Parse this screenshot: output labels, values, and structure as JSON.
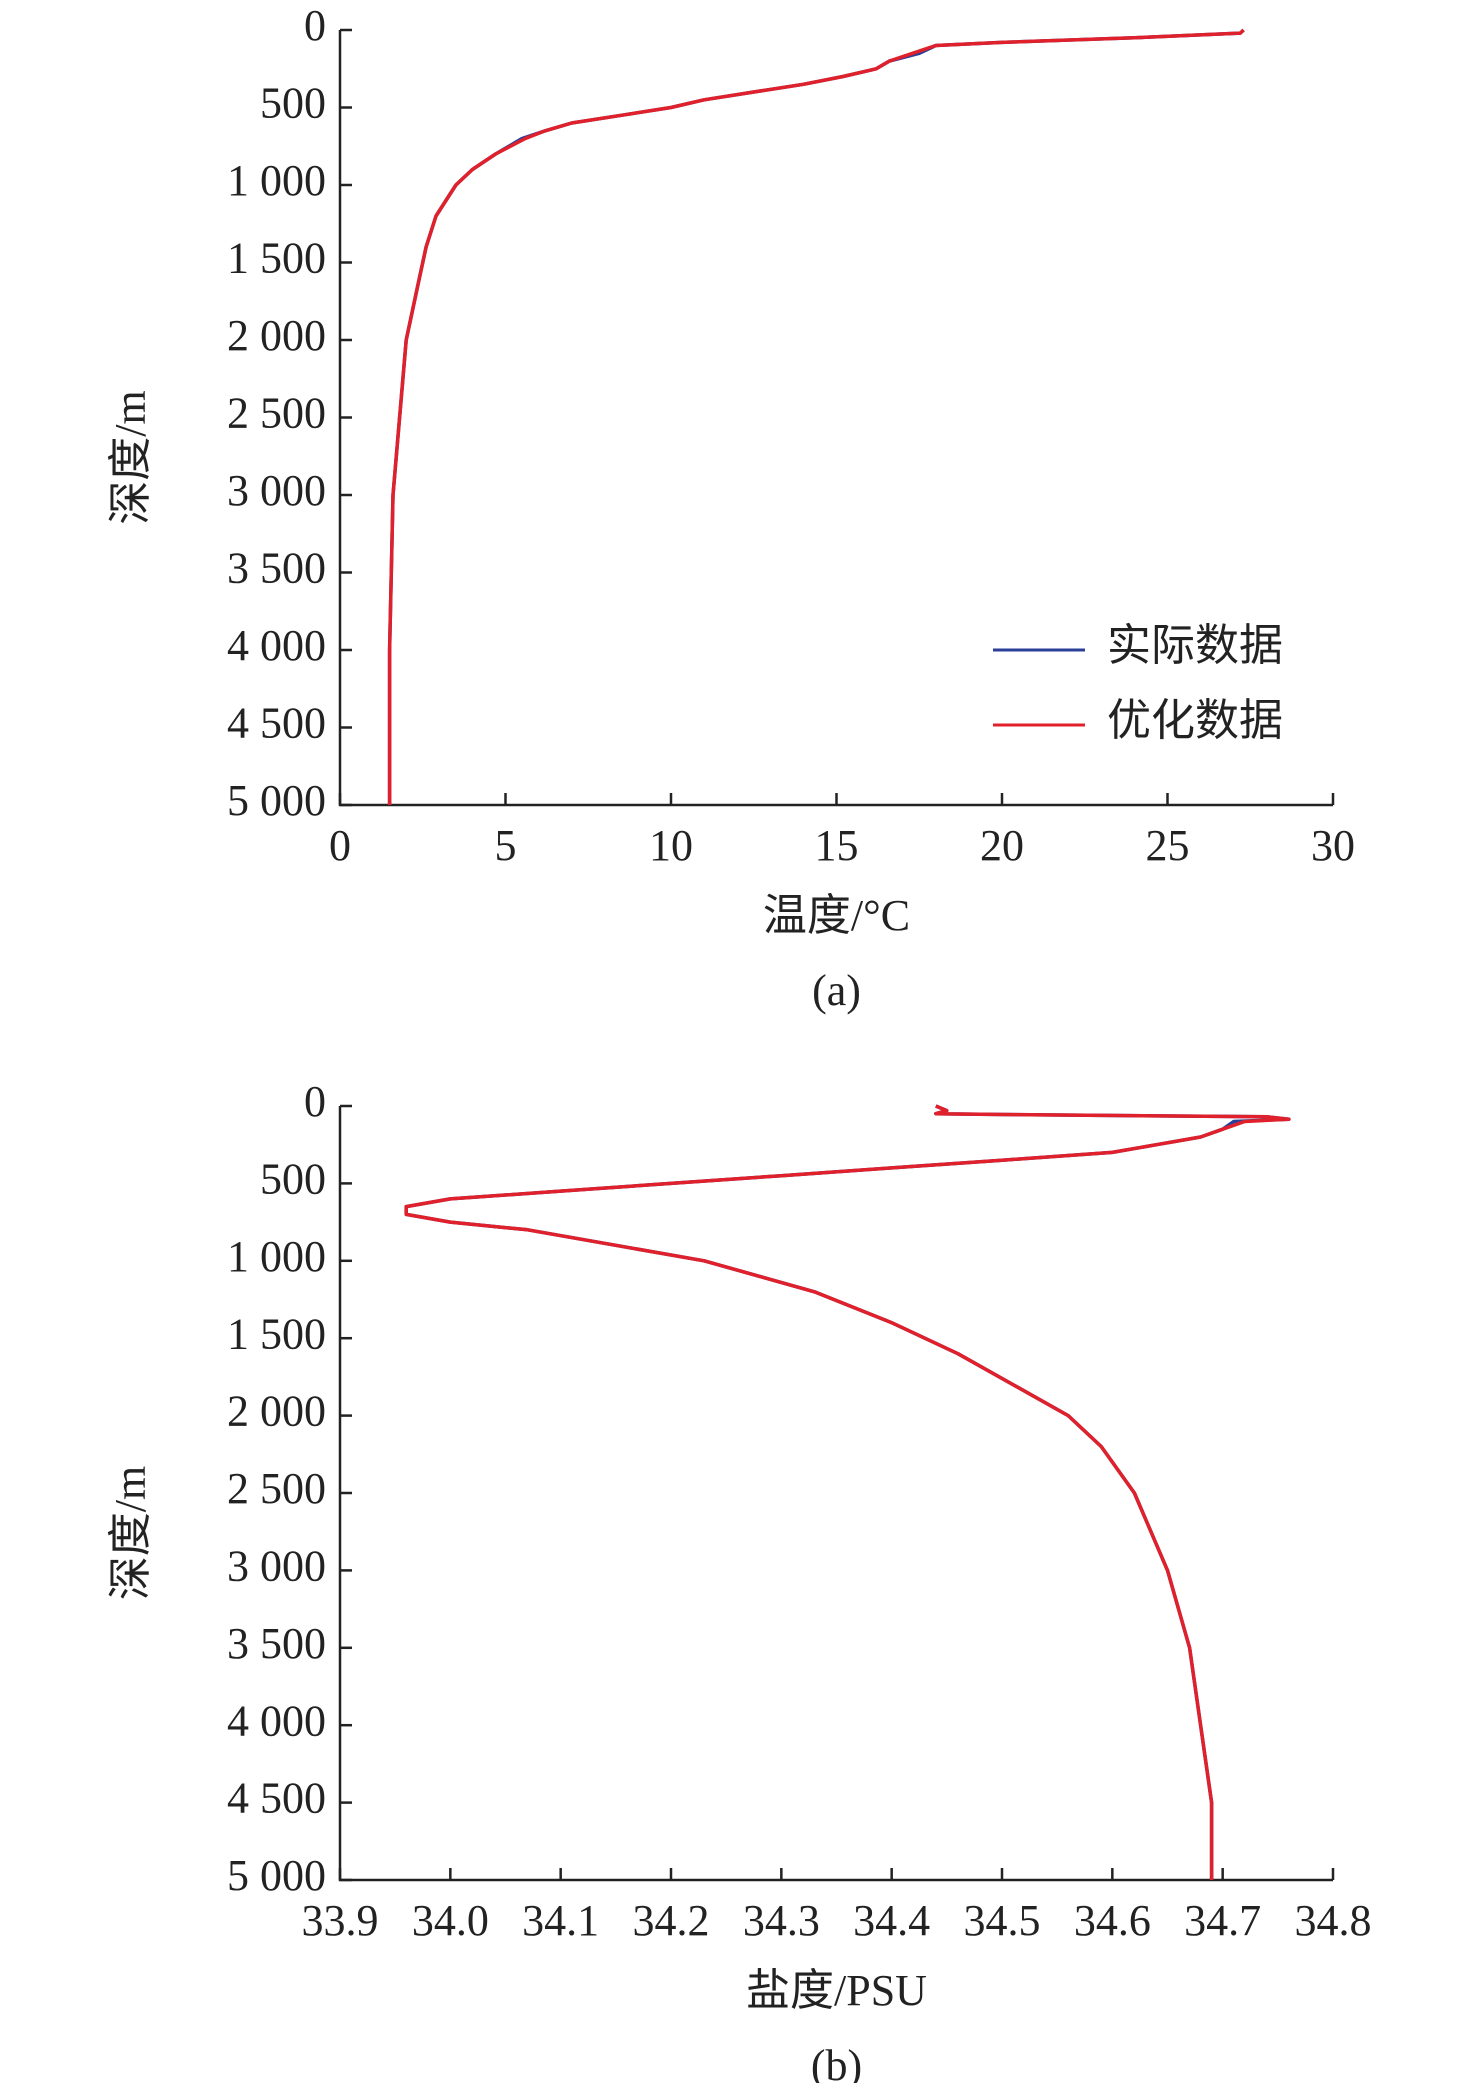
{
  "chart_data": [
    {
      "type": "line",
      "caption": "(a)",
      "x_label": "温度/°C",
      "y_label": "深度/m",
      "xlim": [
        0,
        30
      ],
      "xticks": [
        0,
        5,
        10,
        15,
        20,
        25,
        30
      ],
      "ylim": [
        0,
        5000
      ],
      "y_inverted": true,
      "yticks": [
        0,
        500,
        {
          "value": 1000,
          "label": "1 000"
        },
        {
          "value": 1500,
          "label": "1 500"
        },
        {
          "value": 2000,
          "label": "2 000"
        },
        {
          "value": 2500,
          "label": "2 500"
        },
        {
          "value": 3000,
          "label": "3 000"
        },
        {
          "value": 3500,
          "label": "3 500"
        },
        {
          "value": 4000,
          "label": "4 000"
        },
        {
          "value": 4500,
          "label": "4 500"
        },
        {
          "value": 5000,
          "label": "5 000"
        }
      ],
      "legend": "lower right",
      "series": [
        {
          "name": "实际数据",
          "color": "#2a3f9a",
          "x": [
            27.3,
            27.2,
            24,
            20,
            18,
            17.5,
            16.6,
            16.2,
            15.2,
            14,
            12.5,
            11,
            10,
            8.5,
            7,
            6.2,
            5.5,
            4.7,
            4.0,
            3.5,
            2.9,
            2.6,
            2.4,
            2.0,
            1.8,
            1.6,
            1.55,
            1.5,
            1.5,
            1.5
          ],
          "values": [
            0,
            20,
            50,
            80,
            100,
            150,
            200,
            250,
            300,
            350,
            400,
            450,
            500,
            550,
            600,
            650,
            700,
            800,
            900,
            1000,
            1200,
            1400,
            1600,
            2000,
            2500,
            3000,
            3500,
            4000,
            4500,
            5000
          ]
        },
        {
          "name": "优化数据",
          "color": "#e0202a",
          "x": [
            27.3,
            27.2,
            24,
            20,
            18,
            17.3,
            16.6,
            16.2,
            15.2,
            14,
            12.5,
            11,
            10,
            8.5,
            7,
            6.2,
            5.6,
            4.7,
            4.0,
            3.5,
            2.9,
            2.6,
            2.4,
            2.0,
            1.8,
            1.6,
            1.55,
            1.5,
            1.5,
            1.5
          ],
          "values": [
            0,
            20,
            50,
            80,
            100,
            150,
            200,
            250,
            300,
            350,
            400,
            450,
            500,
            550,
            600,
            650,
            700,
            800,
            900,
            1000,
            1200,
            1400,
            1600,
            2000,
            2500,
            3000,
            3500,
            4000,
            4500,
            5000
          ]
        }
      ]
    },
    {
      "type": "line",
      "caption": "(b)",
      "x_label": "盐度/PSU",
      "y_label": "深度/m",
      "xlim": [
        33.9,
        34.8
      ],
      "xticks": [
        33.9,
        {
          "value": 34,
          "label": "34.0"
        },
        34.1,
        34.2,
        34.3,
        34.4,
        34.5,
        34.6,
        34.7,
        34.8
      ],
      "ylim": [
        0,
        5000
      ],
      "y_inverted": true,
      "yticks": [
        0,
        500,
        {
          "value": 1000,
          "label": "1 000"
        },
        {
          "value": 1500,
          "label": "1 500"
        },
        {
          "value": 2000,
          "label": "2 000"
        },
        {
          "value": 2500,
          "label": "2 500"
        },
        {
          "value": 3000,
          "label": "3 000"
        },
        {
          "value": 3500,
          "label": "3 500"
        },
        {
          "value": 4000,
          "label": "4 000"
        },
        {
          "value": 4500,
          "label": "4 500"
        },
        {
          "value": 5000,
          "label": "5 000"
        }
      ],
      "series": [
        {
          "color": "#2a3f9a",
          "x": [
            34.44,
            34.45,
            34.44,
            34.5,
            34.74,
            34.76,
            34.71,
            34.7,
            34.68,
            34.64,
            34.6,
            34.5,
            34.4,
            34.3,
            34.2,
            34.1,
            34.0,
            33.96,
            33.96,
            34.0,
            34.07,
            34.15,
            34.23,
            34.28,
            34.33,
            34.4,
            34.46,
            34.51,
            34.56,
            34.59,
            34.62,
            34.65,
            34.67,
            34.68,
            34.69,
            34.69
          ],
          "values": [
            0,
            30,
            50,
            55,
            70,
            85,
            100,
            150,
            200,
            250,
            300,
            350,
            400,
            450,
            500,
            550,
            600,
            650,
            700,
            750,
            800,
            900,
            1000,
            1100,
            1200,
            1400,
            1600,
            1800,
            2000,
            2200,
            2500,
            3000,
            3500,
            4000,
            4500,
            5000
          ]
        },
        {
          "color": "#e0202a",
          "x": [
            34.44,
            34.45,
            34.44,
            34.5,
            34.74,
            34.76,
            34.72,
            34.7,
            34.68,
            34.64,
            34.6,
            34.5,
            34.4,
            34.3,
            34.2,
            34.1,
            34.0,
            33.96,
            33.96,
            34.0,
            34.07,
            34.15,
            34.23,
            34.28,
            34.33,
            34.4,
            34.46,
            34.51,
            34.56,
            34.59,
            34.62,
            34.65,
            34.67,
            34.68,
            34.69,
            34.69
          ],
          "values": [
            0,
            30,
            50,
            55,
            70,
            85,
            100,
            150,
            200,
            250,
            300,
            350,
            400,
            450,
            500,
            550,
            600,
            650,
            700,
            750,
            800,
            900,
            1000,
            1100,
            1200,
            1400,
            1600,
            1800,
            2000,
            2200,
            2500,
            3000,
            3500,
            4000,
            4500,
            5000
          ]
        }
      ]
    }
  ]
}
